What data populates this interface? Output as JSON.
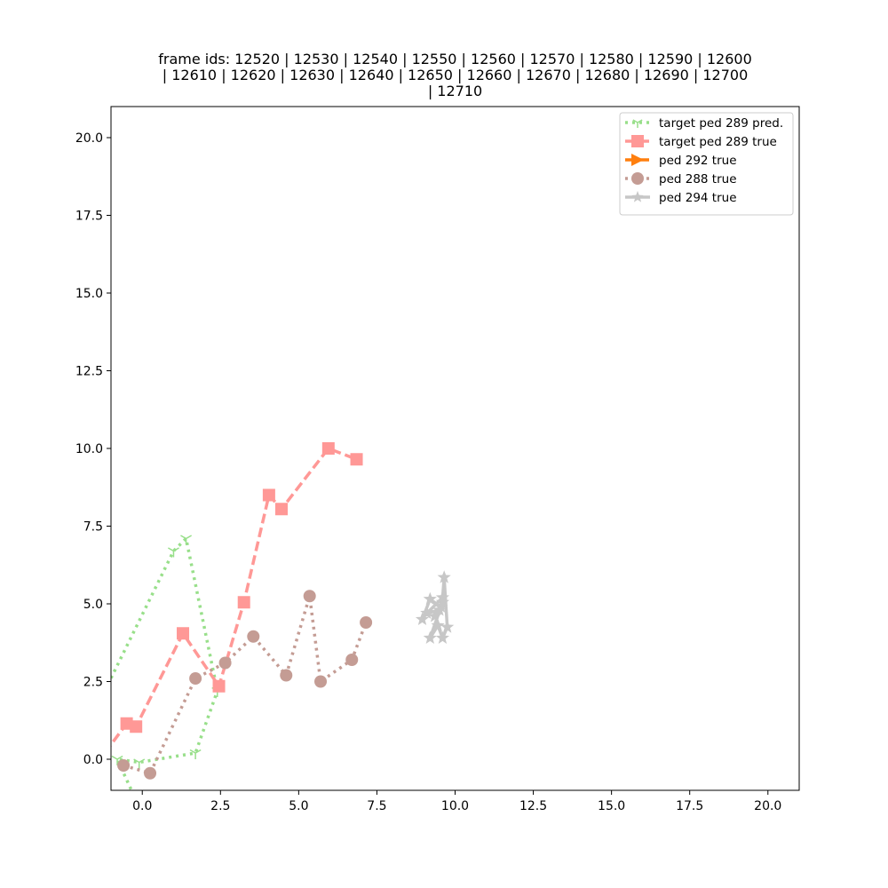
{
  "chart_data": {
    "type": "line",
    "title_lines": [
      "frame ids: 12520 | 12530 | 12540 | 12550 | 12560 | 12570 | 12580 | 12590 | 12600",
      "| 12610 | 12620 | 12630 | 12640 | 12650 | 12660 | 12670 | 12680 | 12690 | 12700",
      "| 12710"
    ],
    "xlabel": "",
    "ylabel": "",
    "xlim": [
      -1,
      21
    ],
    "ylim": [
      -1,
      21
    ],
    "x_ticks": [
      0.0,
      2.5,
      5.0,
      7.5,
      10.0,
      12.5,
      15.0,
      17.5,
      20.0
    ],
    "x_tick_labels": [
      "0.0",
      "2.5",
      "5.0",
      "7.5",
      "10.0",
      "12.5",
      "15.0",
      "17.5",
      "20.0"
    ],
    "y_ticks": [
      0.0,
      2.5,
      5.0,
      7.5,
      10.0,
      12.5,
      15.0,
      17.5,
      20.0
    ],
    "y_tick_labels": [
      "0.0",
      "2.5",
      "5.0",
      "7.5",
      "10.0",
      "12.5",
      "15.0",
      "17.5",
      "20.0"
    ],
    "grid": false,
    "legend_position": "top-right",
    "series": [
      {
        "name": "target ped 289 pred.",
        "color": "#98df8a",
        "line_style": "dotted",
        "marker": "tri-down",
        "points": [
          [
            -1.2,
            2.2
          ],
          [
            1.0,
            6.7
          ],
          [
            1.4,
            7.1
          ],
          [
            2.4,
            2.2
          ],
          [
            1.7,
            0.2
          ],
          [
            -0.1,
            -0.1
          ],
          [
            -0.8,
            0.0
          ],
          [
            -0.3,
            -1.1
          ]
        ]
      },
      {
        "name": "target ped 289 true",
        "color": "#ff9896",
        "line_style": "dashed",
        "marker": "square",
        "points": [
          [
            -1.2,
            0.2
          ],
          [
            -0.5,
            1.15
          ],
          [
            -0.2,
            1.05
          ],
          [
            1.3,
            4.05
          ],
          [
            2.45,
            2.35
          ],
          [
            3.25,
            5.05
          ],
          [
            4.05,
            8.5
          ],
          [
            4.45,
            8.05
          ],
          [
            5.95,
            10.0
          ],
          [
            6.85,
            9.65
          ]
        ]
      },
      {
        "name": "ped 292 true",
        "color": "#ff7f0e",
        "line_style": "dashed",
        "marker": "triangle-right",
        "points": []
      },
      {
        "name": "ped 288 true",
        "color": "#c49c94",
        "line_style": "dotted",
        "marker": "circle",
        "points": [
          [
            -0.6,
            -0.2
          ],
          [
            0.25,
            -0.45
          ],
          [
            1.7,
            2.6
          ],
          [
            2.65,
            3.1
          ],
          [
            3.55,
            3.95
          ],
          [
            4.6,
            2.7
          ],
          [
            5.35,
            5.25
          ],
          [
            5.7,
            2.5
          ],
          [
            6.7,
            3.2
          ],
          [
            7.15,
            4.4
          ]
        ]
      },
      {
        "name": "ped 294 true",
        "color": "#c7c7c7",
        "line_style": "solid",
        "marker": "star",
        "points": [
          [
            8.95,
            4.5
          ],
          [
            9.2,
            5.15
          ],
          [
            9.55,
            4.9
          ],
          [
            9.35,
            4.6
          ],
          [
            9.6,
            5.05
          ],
          [
            9.2,
            3.9
          ],
          [
            9.45,
            4.3
          ],
          [
            9.6,
            3.9
          ],
          [
            9.75,
            4.25
          ],
          [
            9.65,
            5.85
          ],
          [
            9.6,
            5.2
          ],
          [
            9.1,
            4.7
          ],
          [
            9.5,
            4.8
          ]
        ]
      }
    ]
  }
}
